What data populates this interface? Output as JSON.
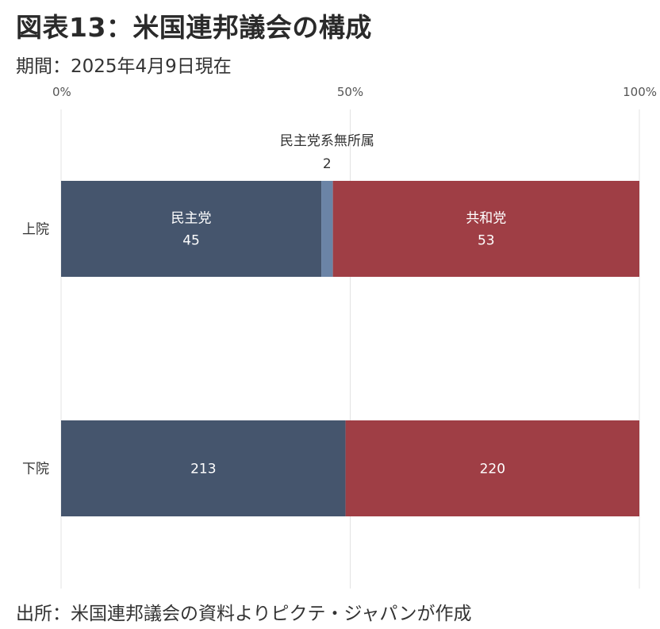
{
  "title": "図表13：米国連邦議会の構成",
  "subtitle": "期間：2025年4月9日現在",
  "source": "出所：米国連邦議会の資料よりピクテ・ジャパンが作成",
  "chart_data": {
    "type": "bar",
    "orientation": "horizontal",
    "stacked": true,
    "normalized": "percent",
    "categories": [
      "上院",
      "下院"
    ],
    "x_ticks": [
      "0%",
      "50%",
      "100%"
    ],
    "xlim": [
      0,
      100
    ],
    "grid": true,
    "series": [
      {
        "name": "民主党",
        "color": "#45556d",
        "values": [
          45,
          213
        ]
      },
      {
        "name": "民主党系無所属",
        "color": "#6b84a6",
        "values": [
          2,
          0
        ]
      },
      {
        "name": "共和党",
        "color": "#9f3e45",
        "values": [
          53,
          220
        ]
      }
    ],
    "data_labels": [
      [
        {
          "series": "民主党",
          "lines": [
            "民主党",
            "45"
          ],
          "position": "inside"
        },
        {
          "series": "民主党系無所属",
          "lines": [
            "民主党系無所属",
            "2"
          ],
          "position": "above"
        },
        {
          "series": "共和党",
          "lines": [
            "共和党",
            "53"
          ],
          "position": "inside"
        }
      ],
      [
        {
          "series": "民主党",
          "lines": [
            "213"
          ],
          "position": "inside"
        },
        {
          "series": "共和党",
          "lines": [
            "220"
          ],
          "position": "inside"
        }
      ]
    ]
  }
}
